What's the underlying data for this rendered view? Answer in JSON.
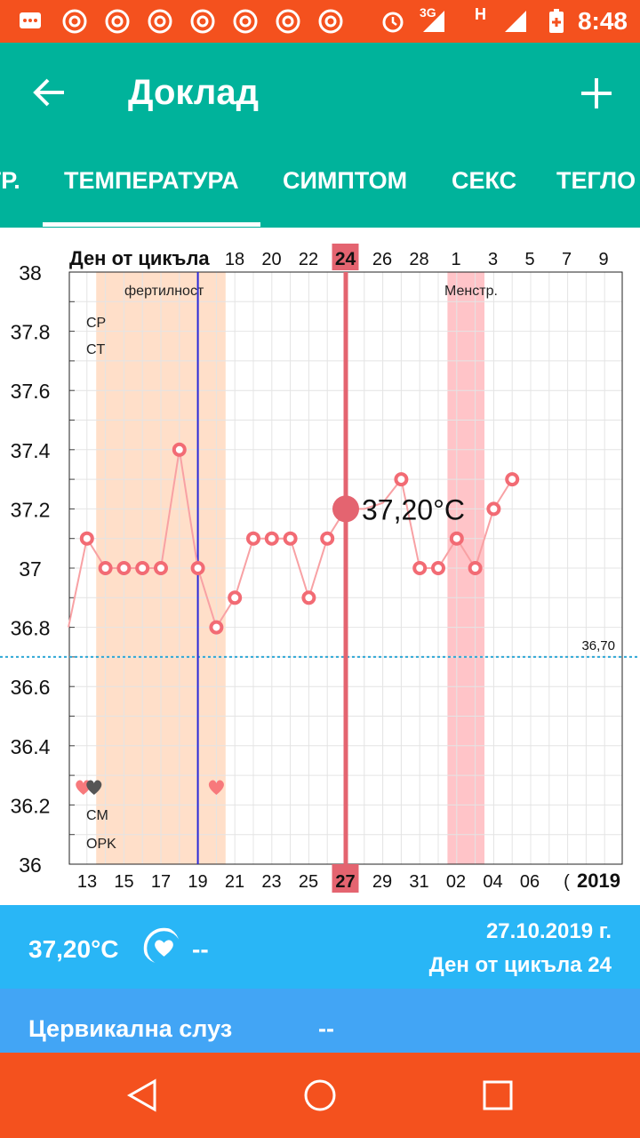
{
  "status_bar": {
    "time": "8:48",
    "network_3g": "3G",
    "network_h": "H",
    "icons": [
      "message-icon",
      "chrome-icon",
      "chrome-icon",
      "chrome-icon",
      "chrome-icon",
      "chrome-icon",
      "chrome-icon",
      "alarm-icon",
      "signal-icon",
      "signal-icon",
      "battery-icon"
    ]
  },
  "app_bar": {
    "title": "Доклад"
  },
  "tabs": [
    {
      "label": "ГР."
    },
    {
      "label": "ТЕМПЕРАТУРА"
    },
    {
      "label": "СИМПТОМ"
    },
    {
      "label": "СЕКС"
    },
    {
      "label": "ТЕГЛО"
    }
  ],
  "chart_data": {
    "type": "line",
    "top_axis_label": "Ден от цикъла",
    "top_ticks": [
      "18",
      "20",
      "22",
      "24",
      "26",
      "28",
      "1",
      "3",
      "5",
      "7",
      "9"
    ],
    "selected_top_tick": "24",
    "bottom_ticks": [
      "13",
      "15",
      "17",
      "19",
      "21",
      "23",
      "25",
      "27",
      "29",
      "31",
      "02",
      "04",
      "06",
      "("
    ],
    "selected_bottom_tick": "27",
    "year_label": "2019",
    "ylim": [
      36,
      38
    ],
    "y_ticks": [
      "36",
      "36.2",
      "36.4",
      "36.6",
      "36.8",
      "37",
      "37.2",
      "37.4",
      "37.6",
      "37.8",
      "38"
    ],
    "cover_labels": [
      "CP",
      "CT"
    ],
    "bottom_labels": [
      "CM",
      "OPK"
    ],
    "fertile_label": "фертилност",
    "menstruation_label": "Менстр.",
    "coverline_label": "36,70",
    "coverline_value": 36.7,
    "selected_value_label": "37,20°C",
    "x": [
      "12",
      "13",
      "14",
      "15",
      "16",
      "17",
      "18",
      "19",
      "20",
      "21",
      "22",
      "23",
      "24",
      "25",
      "26",
      "27",
      "28",
      "29",
      "30",
      "31",
      "1",
      "2",
      "3",
      "4",
      "5"
    ],
    "values": [
      36.8,
      37.1,
      37.0,
      37.0,
      37.0,
      37.0,
      37.4,
      37.0,
      36.8,
      36.9,
      37.1,
      37.1,
      37.1,
      36.9,
      37.1,
      37.2,
      37.2,
      37.22,
      37.3,
      37.0,
      37.0,
      37.1,
      37.0,
      37.2,
      37.3
    ],
    "fertile_range": [
      "14",
      "20"
    ],
    "ovulation_day": "19",
    "menstruation_range": [
      "2",
      "3"
    ],
    "selected_day": "27",
    "sex_days": [
      "13",
      "13",
      "20"
    ],
    "colors": {
      "line": "#f8a1a4",
      "marker": "#f26b74",
      "selected": "#e46470",
      "fertile": "#ffdfc9",
      "menstruation": "#ffc4c8",
      "ovulation": "#2a2ad8",
      "coverline": "#2fa8d6"
    }
  },
  "summary": {
    "temperature": "37,20°C",
    "sex_value": "--",
    "date": "27.10.2019 г.",
    "cycle_day": "Ден от цикъла 24"
  },
  "mucus": {
    "label": "Цервикална слуз",
    "value": "--"
  },
  "nav": {
    "icons": [
      "back-triangle-icon",
      "home-circle-icon",
      "recents-square-icon"
    ]
  }
}
